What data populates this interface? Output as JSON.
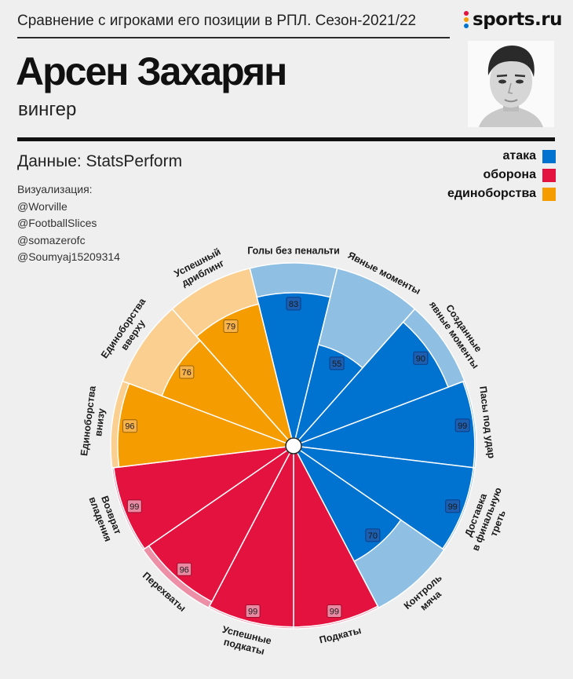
{
  "header": {
    "subtitle": "Сравнение с игроками его позиции в РПЛ. Сезон-2021/22",
    "logo_text": "sports.ru",
    "player_name": "Арсен Захарян",
    "player_role": "вингер",
    "source": "Данные: StatsPerform",
    "credits": [
      "Визуализация:",
      "@Worville",
      "@FootballSlices",
      "@somazerofc",
      "@Soumyaj15209314"
    ]
  },
  "legend": [
    {
      "label": "атака",
      "color": "#0073d1"
    },
    {
      "label": "оборона",
      "color": "#e3123f"
    },
    {
      "label": "единоборства",
      "color": "#f59c00"
    }
  ],
  "chart_data": {
    "type": "polar-bar",
    "scale": [
      0,
      100
    ],
    "categories": [
      {
        "label": [
          "Голы без пенальти"
        ],
        "value": 83,
        "group": "атака"
      },
      {
        "label": [
          "Явные моменты"
        ],
        "value": 55,
        "group": "атака"
      },
      {
        "label": [
          "Созданные",
          "явные моменты"
        ],
        "value": 90,
        "group": "атака"
      },
      {
        "label": [
          "Пасы под удар"
        ],
        "value": 99,
        "group": "атака"
      },
      {
        "label": [
          "Доставка",
          "в финальную",
          "треть"
        ],
        "value": 99,
        "group": "атака"
      },
      {
        "label": [
          "Контроль",
          "мяча"
        ],
        "value": 70,
        "group": "атака"
      },
      {
        "label": [
          "Подкаты"
        ],
        "value": 99,
        "group": "оборона"
      },
      {
        "label": [
          "Успешные",
          "подкаты"
        ],
        "value": 99,
        "group": "оборона"
      },
      {
        "label": [
          "Перехваты"
        ],
        "value": 96,
        "group": "оборона"
      },
      {
        "label": [
          "Возврат",
          "владения"
        ],
        "value": 99,
        "group": "оборона"
      },
      {
        "label": [
          "Единоборства",
          "внизу"
        ],
        "value": 96,
        "group": "единоборства"
      },
      {
        "label": [
          "Единоборства",
          "вверху"
        ],
        "value": 76,
        "group": "единоборства"
      },
      {
        "label": [
          "Успешный",
          "дриблинг"
        ],
        "value": 79,
        "group": "единоборства"
      }
    ],
    "colors": {
      "атака": {
        "main": "#0073d1",
        "light": "#8fc0e3",
        "label": "#1c5fb0",
        "border": "#0a3c85"
      },
      "оборона": {
        "main": "#e3123f",
        "light": "#ee8fa8",
        "label": "#e98aa3",
        "border": "#9e0d2c"
      },
      "единоборства": {
        "main": "#f59c00",
        "light": "#fbcf90",
        "label": "#f7b24a",
        "border": "#9a6200"
      }
    }
  }
}
